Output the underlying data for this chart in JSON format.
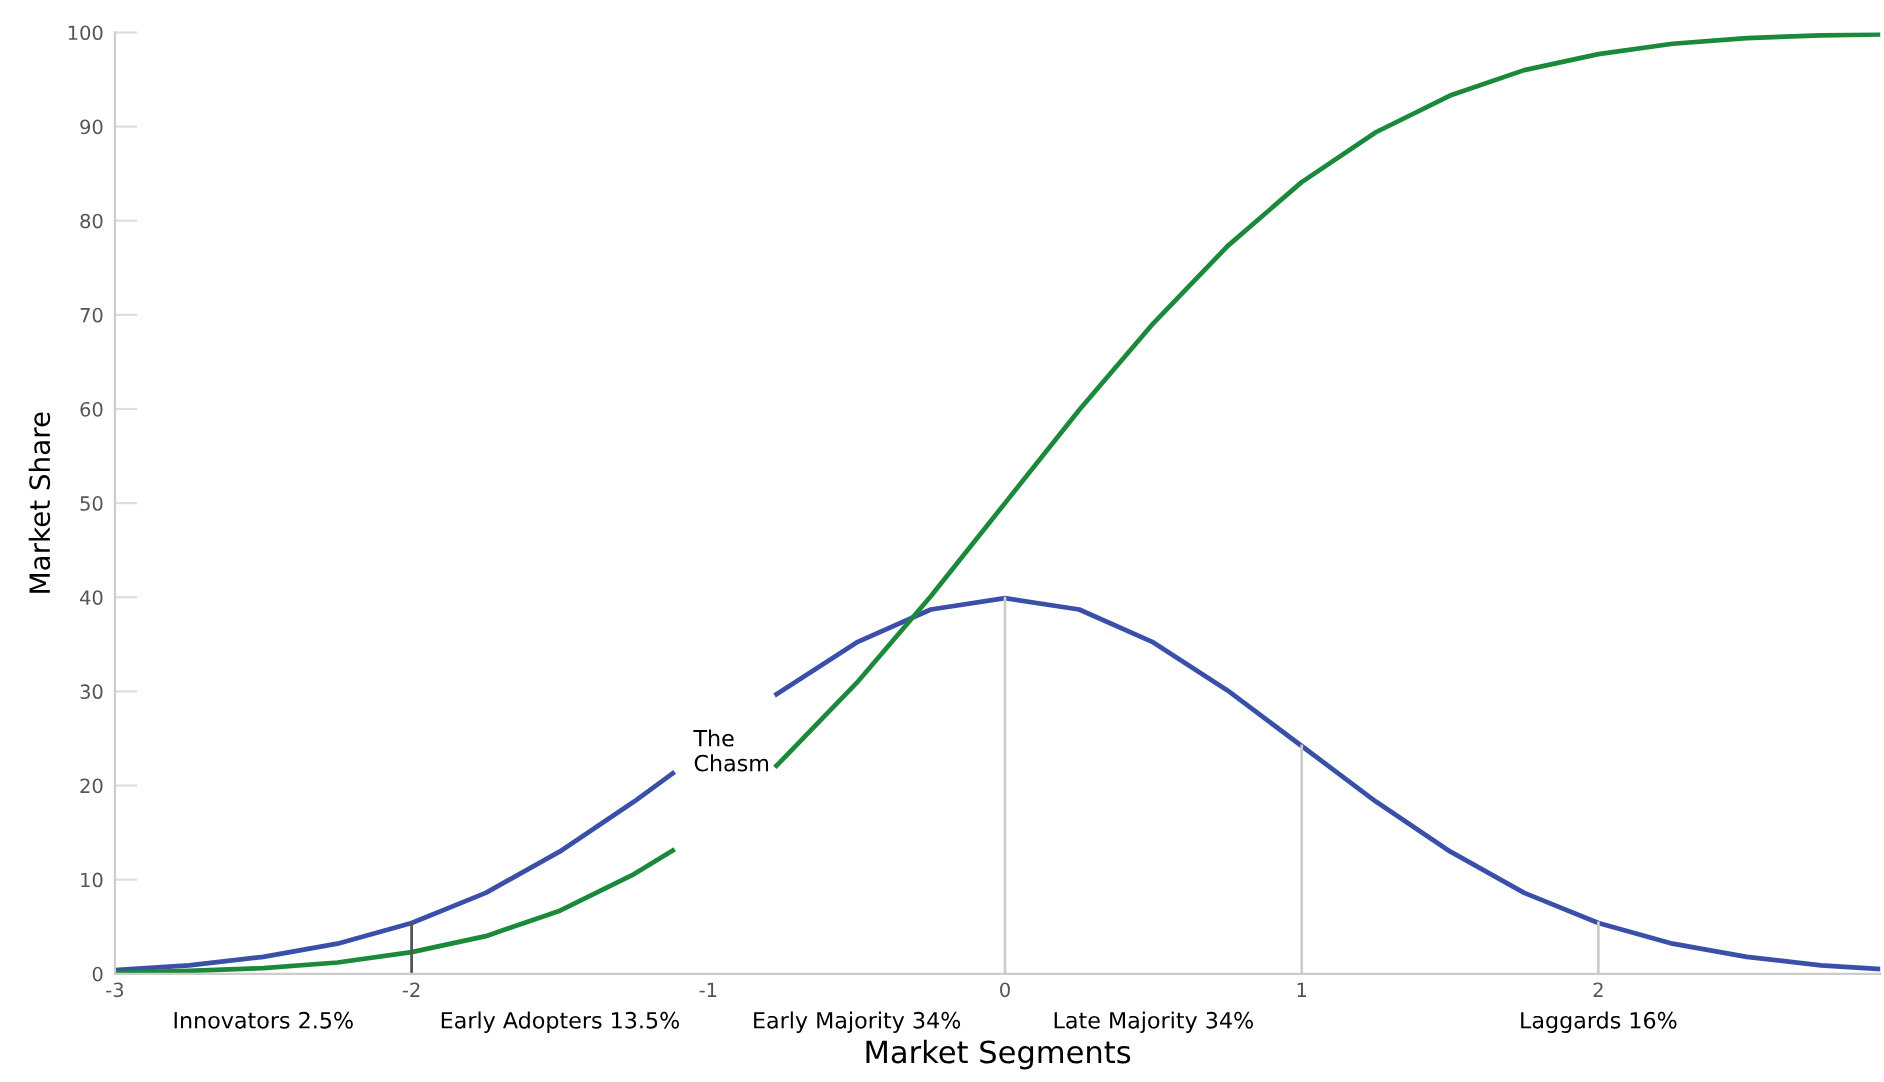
{
  "chart_data": {
    "type": "line",
    "xlabel": "Market Segments",
    "ylabel": "Market Share",
    "xlim": [
      -3,
      2.95
    ],
    "ylim": [
      0,
      100
    ],
    "xticks": [
      -3,
      -2,
      -1,
      0,
      1,
      2
    ],
    "yticks": [
      0,
      10,
      20,
      30,
      40,
      50,
      60,
      70,
      80,
      90,
      100
    ],
    "grid": false,
    "line_style": "solid",
    "marker": "none",
    "series": [
      {
        "color": "#3a4fa8",
        "x": [
          -3,
          -2.75,
          -2.5,
          -2.25,
          -2,
          -1.75,
          -1.5,
          -1.25,
          -1.12,
          -0.95,
          -0.77,
          -0.5,
          -0.25,
          0,
          0.25,
          0.5,
          0.75,
          1,
          1.25,
          1.5,
          1.75,
          2,
          2.25,
          2.5,
          2.75,
          2.95
        ],
        "values": [
          0.4,
          0.9,
          1.8,
          3.2,
          5.4,
          8.6,
          13,
          18.3,
          21.3,
          null,
          29.7,
          35.2,
          38.7,
          39.9,
          38.7,
          35.2,
          30.1,
          24.2,
          18.3,
          13,
          8.6,
          5.4,
          3.2,
          1.8,
          0.9,
          0.5
        ]
      },
      {
        "color": "#1a8a3a",
        "x": [
          -3,
          -2.75,
          -2.5,
          -2.25,
          -2,
          -1.75,
          -1.5,
          -1.25,
          -1.12,
          -0.95,
          -0.77,
          -0.5,
          -0.25,
          0,
          0.25,
          0.5,
          0.75,
          1,
          1.25,
          1.5,
          1.75,
          2,
          2.25,
          2.5,
          2.75,
          2.95
        ],
        "values": [
          0.1,
          0.3,
          0.6,
          1.2,
          2.3,
          4,
          6.7,
          10.6,
          13.1,
          null,
          22.1,
          30.9,
          40.1,
          50,
          59.9,
          69.1,
          77.3,
          84.1,
          89.4,
          93.3,
          96,
          97.7,
          98.8,
          99.4,
          99.7,
          99.8
        ]
      },
      {
        "color": "#555555",
        "x": [
          -2,
          -2
        ],
        "values": [
          0,
          5.4
        ]
      },
      {
        "color": "#cccccc",
        "x": [
          0,
          0
        ],
        "values": [
          0,
          39.9
        ]
      },
      {
        "color": "#cccccc",
        "x": [
          1,
          1
        ],
        "values": [
          0,
          24.2
        ]
      },
      {
        "color": "#cccccc",
        "x": [
          2,
          2
        ],
        "values": [
          0,
          5.4
        ]
      }
    ],
    "annotations": [
      "The\nChasm",
      "Innovators 2.5%",
      "Early Adopters 13.5%",
      "Early Majority 34%",
      "Late Majority 34%",
      "Laggards 16%"
    ]
  }
}
